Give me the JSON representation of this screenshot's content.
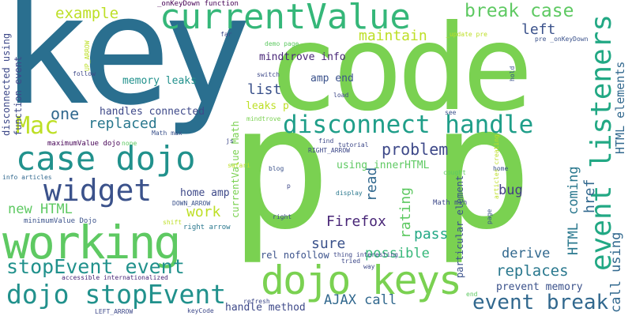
{
  "words": [
    {
      "id": "key",
      "text": "key",
      "color": "#2a6f8f"
    },
    {
      "id": "code",
      "text": "code",
      "color": "#7ad151"
    },
    {
      "id": "p1",
      "text": "p",
      "color": "#7ad151"
    },
    {
      "id": "p2",
      "text": "p",
      "color": "#7ad151"
    },
    {
      "id": "working",
      "text": "working",
      "color": "#5ec962"
    },
    {
      "id": "currentValue",
      "text": "currentValue",
      "color": "#35b779"
    },
    {
      "id": "dojo_keys",
      "text": "dojo keys",
      "color": "#7ad151"
    },
    {
      "id": "case_dojo",
      "text": "case dojo",
      "color": "#21918c"
    },
    {
      "id": "disconnect_handle",
      "text": "disconnect handle",
      "color": "#1f9e89"
    },
    {
      "id": "widget",
      "text": "widget",
      "color": "#3b528b"
    },
    {
      "id": "Mac",
      "text": "Mac",
      "color": "#bddf26"
    },
    {
      "id": "event_listeners",
      "text": "event listeners",
      "color": "#22a884"
    },
    {
      "id": "dojo_stopEvent",
      "text": "dojo stopEvent",
      "color": "#21918c"
    },
    {
      "id": "stopEvent_event",
      "text": "stopEvent event",
      "color": "#21918c"
    },
    {
      "id": "event_break",
      "text": "event break",
      "color": "#31688e"
    },
    {
      "id": "break_case",
      "text": "break case",
      "color": "#5ec962"
    },
    {
      "id": "example",
      "text": "example",
      "color": "#bddf26"
    },
    {
      "id": "maintain",
      "text": "maintain",
      "color": "#bddf26"
    },
    {
      "id": "left",
      "text": "left",
      "color": "#3b528b"
    },
    {
      "id": "one",
      "text": "one",
      "color": "#31688e"
    },
    {
      "id": "replaced",
      "text": "replaced",
      "color": "#2a788e"
    },
    {
      "id": "list",
      "text": "list",
      "color": "#3b528b"
    },
    {
      "id": "problem",
      "text": "problem",
      "color": "#3e4989"
    },
    {
      "id": "Firefox",
      "text": "Firefox",
      "color": "#482677"
    },
    {
      "id": "sure",
      "text": "sure",
      "color": "#3b528b"
    },
    {
      "id": "possible",
      "text": "possible",
      "color": "#35b779"
    },
    {
      "id": "replaces",
      "text": "replaces",
      "color": "#2a788e"
    },
    {
      "id": "derive",
      "text": "derive",
      "color": "#31688e"
    },
    {
      "id": "pass",
      "text": "pass",
      "color": "#22a884"
    },
    {
      "id": "bug",
      "text": "bug",
      "color": "#433e85"
    },
    {
      "id": "work",
      "text": "work",
      "color": "#bddf26"
    },
    {
      "id": "new_HTML",
      "text": "new HTML",
      "color": "#5ec962"
    },
    {
      "id": "AJAX_call",
      "text": "AJAX call",
      "color": "#31688e"
    },
    {
      "id": "rating",
      "text": "rating",
      "color": "#5ec962"
    },
    {
      "id": "read",
      "text": "read",
      "color": "#31688e"
    },
    {
      "id": "href",
      "text": "href",
      "color": "#31688e"
    },
    {
      "id": "HTML_coming",
      "text": "HTML coming",
      "color": "#2a788e"
    },
    {
      "id": "call_using",
      "text": "call using",
      "color": "#31688e"
    },
    {
      "id": "HTML_elements",
      "text": "HTML elements",
      "color": "#31688e"
    },
    {
      "id": "prevent_memory",
      "text": "prevent memory",
      "color": "#3b528b"
    },
    {
      "id": "handle_method",
      "text": "handle method",
      "color": "#3e4989"
    },
    {
      "id": "handles_connected",
      "text": "handles connected",
      "color": "#3e4989"
    },
    {
      "id": "memory_leaks",
      "text": "memory leaks",
      "color": "#21918c"
    },
    {
      "id": "mindtrove_info",
      "text": "mindtrove info",
      "color": "#482677"
    },
    {
      "id": "amp_end",
      "text": "amp end",
      "color": "#3b528b"
    },
    {
      "id": "using_innerHTML",
      "text": "using innerHTML",
      "color": "#5ec962"
    },
    {
      "id": "home_amp",
      "text": "home amp",
      "color": "#3e4989"
    },
    {
      "id": "leaks_p",
      "text": "leaks p",
      "color": "#bddf26"
    },
    {
      "id": "rel_nofollow",
      "text": "rel nofollow",
      "color": "#3b528b"
    },
    {
      "id": "Math_min",
      "text": "Math min",
      "color": "#3e4989"
    },
    {
      "id": "disconnected_using",
      "text": "disconnected using",
      "color": "#3e4989"
    },
    {
      "id": "function_event",
      "text": "function event",
      "color": "#3e4989"
    },
    {
      "id": "currentValue_Math",
      "text": "currentValue Math",
      "color": "#7ad151"
    },
    {
      "id": "particular_element",
      "text": "particular element",
      "color": "#3b528b"
    },
    {
      "id": "maximumValue_dojo",
      "text": "maximumValue dojo",
      "color": "#440154"
    },
    {
      "id": "minimumValue_Dojo",
      "text": "minimumValue Dojo",
      "color": "#3b528b"
    },
    {
      "id": "accessible",
      "text": "accessible internationalized",
      "color": "#482677"
    },
    {
      "id": "onKeyDown_function",
      "text": "_onKeyDown function",
      "color": "#440154"
    },
    {
      "id": "pre_onKeyDown",
      "text": "pre _onKeyDown",
      "color": "#3b528b"
    },
    {
      "id": "update_pre",
      "text": "_update pre",
      "color": "#bddf26"
    },
    {
      "id": "UP_ARROW",
      "text": "UP_ARROW",
      "color": "#bddf26"
    },
    {
      "id": "DOWN_ARROW",
      "text": "DOWN_ARROW",
      "color": "#3b528b"
    },
    {
      "id": "RIGHT_ARROW",
      "text": "RIGHT_ARROW",
      "color": "#3e4989"
    },
    {
      "id": "LEFT_ARROW",
      "text": "LEFT_ARROW",
      "color": "#3e4989"
    },
    {
      "id": "right_arrow",
      "text": "right arrow",
      "color": "#2a788e"
    },
    {
      "id": "demo_page",
      "text": "demo page",
      "color": "#5ec962"
    },
    {
      "id": "info_articles",
      "text": "info articles",
      "color": "#31688e"
    },
    {
      "id": "articles_creating",
      "text": "articles creating",
      "color": "#bddf26"
    },
    {
      "id": "thing_interesting",
      "text": "thing interesting",
      "color": "#3e4989"
    },
    {
      "id": "Math_max",
      "text": "Math max",
      "color": "#3b528b"
    },
    {
      "id": "keyCode",
      "text": "keyCode",
      "color": "#3e4989"
    },
    {
      "id": "tutorial",
      "text": "tutorial",
      "color": "#3e4989"
    },
    {
      "id": "safari",
      "text": "safari",
      "color": "#bddf26"
    },
    {
      "id": "follow",
      "text": "follow",
      "color": "#3e4989"
    },
    {
      "id": "switch",
      "text": "switch",
      "color": "#3e4989"
    },
    {
      "id": "mindtrove",
      "text": "mindtrove",
      "color": "#7ad151"
    },
    {
      "id": "far",
      "text": "far",
      "color": "#3e4989"
    },
    {
      "id": "load",
      "text": "load",
      "color": "#3e4989"
    },
    {
      "id": "see",
      "text": "see",
      "color": "#3b528b"
    },
    {
      "id": "hold",
      "text": "hold",
      "color": "#3b528b"
    },
    {
      "id": "find",
      "text": "find",
      "color": "#3e4989"
    },
    {
      "id": "none",
      "text": "none",
      "color": "#5ec962"
    },
    {
      "id": "js",
      "text": "js",
      "color": "#3e4989"
    },
    {
      "id": "blog",
      "text": "blog",
      "color": "#3b528b"
    },
    {
      "id": "display",
      "text": "display",
      "color": "#2a788e"
    },
    {
      "id": "cought",
      "text": "cought",
      "color": "#5ec962"
    },
    {
      "id": "home",
      "text": "home",
      "color": "#3b528b"
    },
    {
      "id": "page",
      "text": "page",
      "color": "#3b528b"
    },
    {
      "id": "shift",
      "text": "shift",
      "color": "#bddf26"
    },
    {
      "id": "right",
      "text": "right",
      "color": "#3e4989"
    },
    {
      "id": "tried",
      "text": "tried",
      "color": "#3e4989"
    },
    {
      "id": "way",
      "text": "way",
      "color": "#3e4989"
    },
    {
      "id": "end",
      "text": "end",
      "color": "#5ec962"
    },
    {
      "id": "refresh",
      "text": "refresh",
      "color": "#3e4989"
    },
    {
      "id": "letter_p",
      "text": "p",
      "color": "#3e4989"
    }
  ]
}
